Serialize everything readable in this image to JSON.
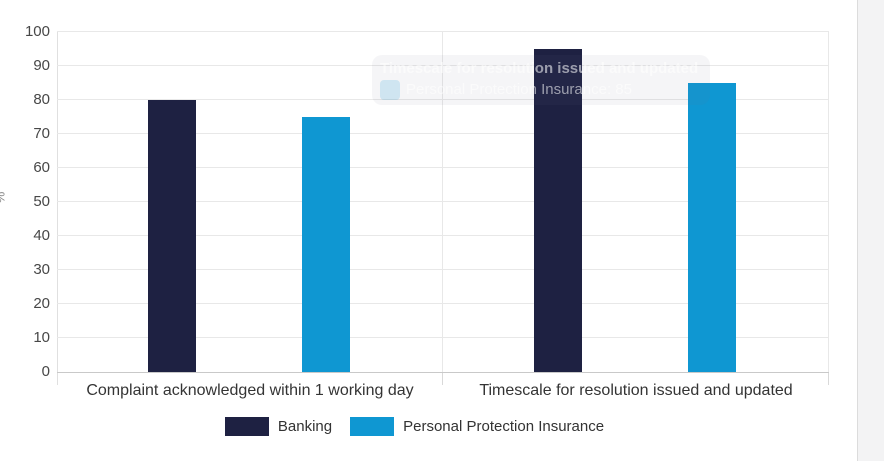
{
  "chart_data": {
    "type": "bar",
    "title": "",
    "categories": [
      "Complaint acknowledged within 1 working day",
      "Timescale for resolution issued and updated"
    ],
    "series": [
      {
        "name": "Banking",
        "color": "#1e2142",
        "values": [
          80,
          95
        ]
      },
      {
        "name": "Personal Protection Insurance",
        "color": "#0f97d2",
        "values": [
          75,
          85
        ]
      }
    ],
    "xlabel": "",
    "ylabel": "%",
    "ylim": [
      0,
      100
    ],
    "ytick_step": 10,
    "grid": true,
    "legend_position": "bottom"
  },
  "tooltip": {
    "title": "Timescale for resolution issued and updated",
    "series_name": "Personal Protection Insurance",
    "value": "85"
  }
}
